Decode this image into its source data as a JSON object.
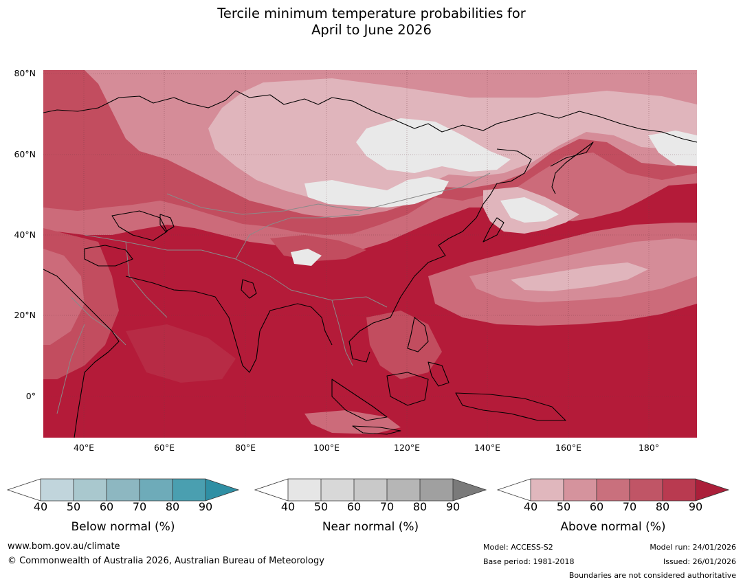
{
  "title": {
    "line1": "Tercile minimum temperature probabilities for",
    "line2": "April to June 2026"
  },
  "map": {
    "lat_labels": [
      "80°N",
      "60°N",
      "40°N",
      "20°N",
      "0°"
    ],
    "lon_labels": [
      "40°E",
      "60°E",
      "80°E",
      "100°E",
      "120°E",
      "140°E",
      "160°E",
      "180°"
    ]
  },
  "legends": [
    {
      "title": "Below normal (%)",
      "ticks": [
        "40",
        "50",
        "60",
        "70",
        "80",
        "90"
      ],
      "colors": [
        "#ffffff",
        "#c1d5dc",
        "#a9c8ce",
        "#8db7c1",
        "#6eabb9",
        "#4a9fb0",
        "#2f8fa4"
      ]
    },
    {
      "title": "Near normal (%)",
      "ticks": [
        "40",
        "50",
        "60",
        "70",
        "80",
        "90"
      ],
      "colors": [
        "#ffffff",
        "#e6e6e6",
        "#d8d8d8",
        "#c9c9c9",
        "#b6b6b6",
        "#a0a0a0",
        "#7a7a7a"
      ]
    },
    {
      "title": "Above normal (%)",
      "ticks": [
        "40",
        "50",
        "60",
        "70",
        "80",
        "90"
      ],
      "colors": [
        "#ffffff",
        "#e0b7bd",
        "#d5939d",
        "#c9707d",
        "#c05566",
        "#b93a50",
        "#ab1f3a"
      ]
    }
  ],
  "footer": {
    "website": "www.bom.gov.au/climate",
    "copyright": "© Commonwealth of Australia 2026, Australian Bureau of Meteorology",
    "model": "Model: ACCESS-S2",
    "base_period": "Base period: 1981-2018",
    "model_run": "Model run: 24/01/2026",
    "issued": "Issued: 26/01/2026",
    "disclaimer": "Boundaries are not considered authoritative"
  },
  "palette": {
    "a90": "#b41b39",
    "a80": "#b72b45",
    "a70": "#c24d5f",
    "a60": "#cc6b7a",
    "a50": "#d58c98",
    "a40": "#e0b5bc",
    "near": "#e9e9e9",
    "below": "#c5dbe4"
  }
}
